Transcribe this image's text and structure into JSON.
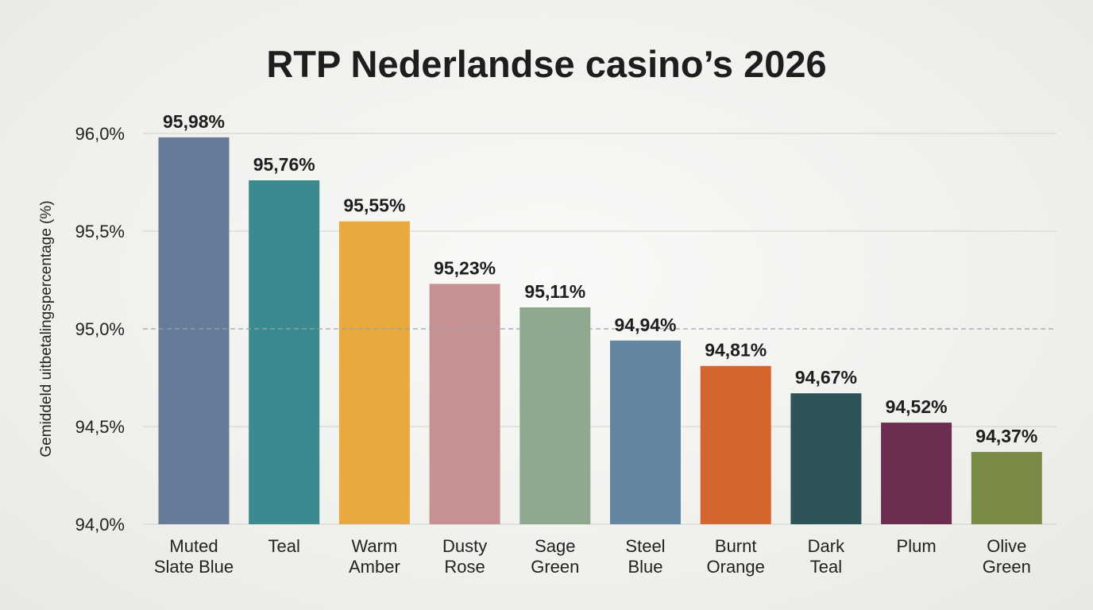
{
  "chart_data": {
    "type": "bar",
    "title": "RTP Nederlandse casino’s 2026",
    "xlabel": "",
    "ylabel": "Gemiddeld uitbetalingspercentage (%)",
    "ylim": [
      94.0,
      96.0
    ],
    "yticks": [
      94.0,
      94.5,
      95.0,
      95.5,
      96.0
    ],
    "ytick_labels": [
      "94,0%",
      "94,5%",
      "95,0%",
      "95,5%",
      "96,0%"
    ],
    "grid": true,
    "reference_line": 95.0,
    "categories": [
      [
        "Muted",
        "Slate Blue"
      ],
      [
        "Teal"
      ],
      [
        "Warm",
        "Amber"
      ],
      [
        "Dusty",
        "Rose"
      ],
      [
        "Sage",
        "Green"
      ],
      [
        "Steel",
        "Blue"
      ],
      [
        "Burnt",
        "Orange"
      ],
      [
        "Dark",
        "Teal"
      ],
      [
        "Plum"
      ],
      [
        "Olive",
        "Green"
      ]
    ],
    "values": [
      95.98,
      95.76,
      95.55,
      95.23,
      95.11,
      94.94,
      94.81,
      94.67,
      94.52,
      94.37
    ],
    "value_labels": [
      "95,98%",
      "95,76%",
      "95,55%",
      "95,23%",
      "95,11%",
      "94,94%",
      "94,81%",
      "94,67%",
      "94,52%",
      "94,37%"
    ],
    "colors": [
      "#667b9a",
      "#3a8a8f",
      "#e8a93e",
      "#c69192",
      "#8ea98d",
      "#6486a1",
      "#d4652f",
      "#2c5459",
      "#6b2d50",
      "#7a8b48"
    ]
  }
}
